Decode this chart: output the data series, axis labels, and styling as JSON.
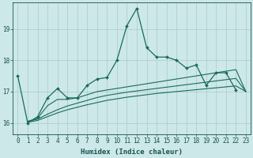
{
  "title": "",
  "xlabel": "Humidex (Indice chaleur)",
  "background_color": "#cce8e8",
  "grid_color": "#b0c8c8",
  "line_color": "#1a6b5a",
  "xlim": [
    -0.5,
    23.5
  ],
  "ylim": [
    15.65,
    19.85
  ],
  "yticks": [
    16,
    17,
    18,
    19
  ],
  "xticks": [
    0,
    1,
    2,
    3,
    4,
    5,
    6,
    7,
    8,
    9,
    10,
    11,
    12,
    13,
    14,
    15,
    16,
    17,
    18,
    19,
    20,
    21,
    22,
    23
  ],
  "font_color": "#1a5050",
  "tick_fontsize": 5.5,
  "xlabel_fontsize": 6.5,
  "series": [
    {
      "x": [
        0,
        1,
        2,
        3,
        4,
        5,
        6,
        7,
        8,
        9,
        10,
        11,
        12,
        13,
        14,
        15,
        16,
        17,
        18,
        19,
        20,
        21,
        22
      ],
      "y": [
        17.5,
        16.0,
        16.2,
        16.8,
        17.1,
        16.8,
        16.8,
        17.2,
        17.4,
        17.45,
        18.0,
        19.1,
        19.65,
        18.4,
        18.1,
        18.1,
        18.0,
        17.75,
        17.85,
        17.2,
        17.6,
        17.6,
        17.05
      ],
      "marker": true,
      "linewidth": 0.9
    },
    {
      "x": [
        1,
        2,
        3,
        4,
        5,
        6,
        7,
        8,
        9,
        10,
        11,
        12,
        13,
        14,
        15,
        16,
        17,
        18,
        19,
        20,
        21,
        22,
        23
      ],
      "y": [
        16.05,
        16.15,
        16.55,
        16.75,
        16.75,
        16.8,
        16.9,
        17.0,
        17.05,
        17.1,
        17.15,
        17.2,
        17.25,
        17.3,
        17.35,
        17.4,
        17.45,
        17.5,
        17.55,
        17.6,
        17.65,
        17.7,
        17.0
      ],
      "marker": false,
      "linewidth": 0.8
    },
    {
      "x": [
        1,
        2,
        3,
        4,
        5,
        6,
        7,
        8,
        9,
        10,
        11,
        12,
        13,
        14,
        15,
        16,
        17,
        18,
        19,
        20,
        21,
        22,
        23
      ],
      "y": [
        16.05,
        16.12,
        16.28,
        16.42,
        16.54,
        16.63,
        16.72,
        16.81,
        16.88,
        16.93,
        16.98,
        17.02,
        17.06,
        17.1,
        17.14,
        17.18,
        17.22,
        17.26,
        17.3,
        17.34,
        17.38,
        17.42,
        17.0
      ],
      "marker": false,
      "linewidth": 0.8
    },
    {
      "x": [
        1,
        2,
        3,
        4,
        5,
        6,
        7,
        8,
        9,
        10,
        11,
        12,
        13,
        14,
        15,
        16,
        17,
        18,
        19,
        20,
        21,
        22,
        23
      ],
      "y": [
        16.02,
        16.08,
        16.2,
        16.32,
        16.42,
        16.5,
        16.58,
        16.65,
        16.72,
        16.77,
        16.82,
        16.86,
        16.9,
        16.94,
        16.97,
        17.0,
        17.03,
        17.06,
        17.09,
        17.12,
        17.15,
        17.18,
        17.0
      ],
      "marker": false,
      "linewidth": 0.8
    }
  ]
}
